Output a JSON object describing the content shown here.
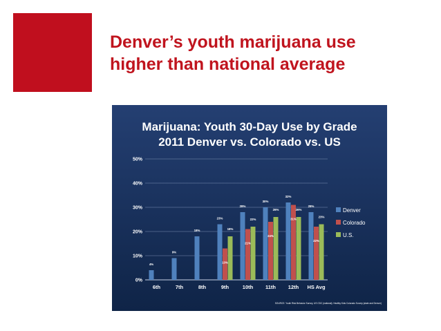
{
  "slide": {
    "title_lines": [
      "Denver’s youth marijuana use",
      "higher than national average"
    ],
    "colors": {
      "accent": "#C00F1E",
      "title": "#C0141E",
      "panel_dark": "#0F2447",
      "panel_light": "#243F72",
      "chart_text": "#FFFFFF"
    }
  },
  "chart_data": {
    "type": "bar",
    "title_lines": [
      "Marijuana: Youth 30-Day Use by Grade",
      "2011 Denver vs. Colorado vs. US"
    ],
    "categories": [
      "6th",
      "7th",
      "8th",
      "9th",
      "10th",
      "11th",
      "12th",
      "HS Avg"
    ],
    "series": [
      {
        "name": "Denver",
        "color": "#4F81BD",
        "values": [
          4,
          9,
          18,
          23,
          28,
          30,
          32,
          28
        ],
        "labels": [
          "4%",
          "9%",
          "18%",
          "23%",
          "28%",
          "30%",
          "32%",
          "28%"
        ]
      },
      {
        "name": "Colorado",
        "color": "#C0504D",
        "values": [
          null,
          null,
          null,
          13,
          21,
          24,
          31,
          22
        ],
        "labels": [
          "",
          "",
          "",
          "13%",
          "21%",
          "24%",
          "31%",
          "22%"
        ]
      },
      {
        "name": "U.S.",
        "color": "#9BBB59",
        "values": [
          null,
          null,
          null,
          18,
          22,
          26,
          26,
          23
        ],
        "labels": [
          "",
          "",
          "",
          "18%",
          "22%",
          "26%",
          "26%",
          "23%"
        ]
      }
    ],
    "ylim": [
      0,
      50
    ],
    "yticks": [
      0,
      10,
      20,
      30,
      40,
      50
    ],
    "ytick_labels": [
      "0%",
      "10%",
      "20%",
      "30%",
      "40%",
      "50%"
    ],
    "grid": true,
    "legend_position": "right",
    "source": "SOURCE: Youth Risk Behavior Survey, US CDC (national); Healthy Kids Colorado Survey (state and Denver)"
  }
}
